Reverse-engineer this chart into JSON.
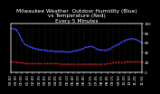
{
  "title": "Milwaukee Weather  Outdoor Humidity (Blue)\nvs Temperature (Red)\nEvery 5 Minutes",
  "bg_color": "#000000",
  "plot_bg_color": "#000000",
  "blue_color": "#4444ff",
  "red_color": "#cc2222",
  "grid_color": "#555555",
  "n_points": 144,
  "ylim": [
    0,
    100
  ],
  "title_fontsize": 4.2,
  "tick_fontsize": 3.0,
  "blue_data": [
    90,
    90,
    90,
    89,
    89,
    88,
    87,
    85,
    82,
    78,
    74,
    70,
    67,
    63,
    60,
    58,
    57,
    56,
    55,
    54,
    53,
    52,
    52,
    51,
    50,
    50,
    49,
    49,
    48,
    48,
    47,
    47,
    47,
    46,
    46,
    46,
    46,
    45,
    45,
    45,
    45,
    44,
    44,
    44,
    44,
    44,
    44,
    43,
    43,
    43,
    43,
    43,
    43,
    43,
    43,
    43,
    43,
    43,
    43,
    42,
    42,
    42,
    42,
    42,
    42,
    42,
    43,
    43,
    43,
    44,
    44,
    45,
    45,
    46,
    46,
    47,
    47,
    48,
    48,
    49,
    50,
    51,
    51,
    52,
    52,
    53,
    53,
    53,
    53,
    52,
    52,
    51,
    50,
    49,
    48,
    47,
    47,
    46,
    46,
    46,
    45,
    45,
    45,
    46,
    46,
    47,
    47,
    48,
    49,
    50,
    51,
    52,
    53,
    54,
    55,
    56,
    57,
    58,
    59,
    60,
    61,
    62,
    63,
    64,
    65,
    66,
    67,
    67,
    68,
    68,
    69,
    69,
    69,
    69,
    68,
    68,
    67,
    67,
    66,
    65,
    64,
    63,
    62,
    61
  ],
  "red_data": [
    22,
    22,
    22,
    22,
    21,
    21,
    21,
    21,
    21,
    20,
    20,
    20,
    20,
    20,
    19,
    19,
    19,
    19,
    19,
    18,
    18,
    18,
    18,
    18,
    18,
    18,
    18,
    18,
    18,
    18,
    18,
    18,
    18,
    18,
    18,
    18,
    18,
    18,
    18,
    18,
    18,
    18,
    18,
    18,
    18,
    18,
    18,
    18,
    18,
    18,
    18,
    18,
    17,
    17,
    17,
    17,
    17,
    17,
    17,
    17,
    17,
    17,
    17,
    17,
    17,
    17,
    17,
    17,
    17,
    17,
    17,
    17,
    17,
    17,
    17,
    17,
    17,
    17,
    17,
    17,
    17,
    17,
    17,
    17,
    17,
    17,
    17,
    17,
    17,
    17,
    17,
    17,
    17,
    17,
    17,
    17,
    17,
    17,
    17,
    17,
    17,
    17,
    17,
    17,
    18,
    18,
    18,
    18,
    19,
    19,
    19,
    20,
    20,
    20,
    21,
    21,
    21,
    21,
    21,
    21,
    21,
    21,
    21,
    21,
    21,
    22,
    22,
    22,
    22,
    22,
    22,
    22,
    22,
    22,
    22,
    22,
    22,
    22,
    22,
    22,
    22,
    22,
    22,
    22
  ]
}
